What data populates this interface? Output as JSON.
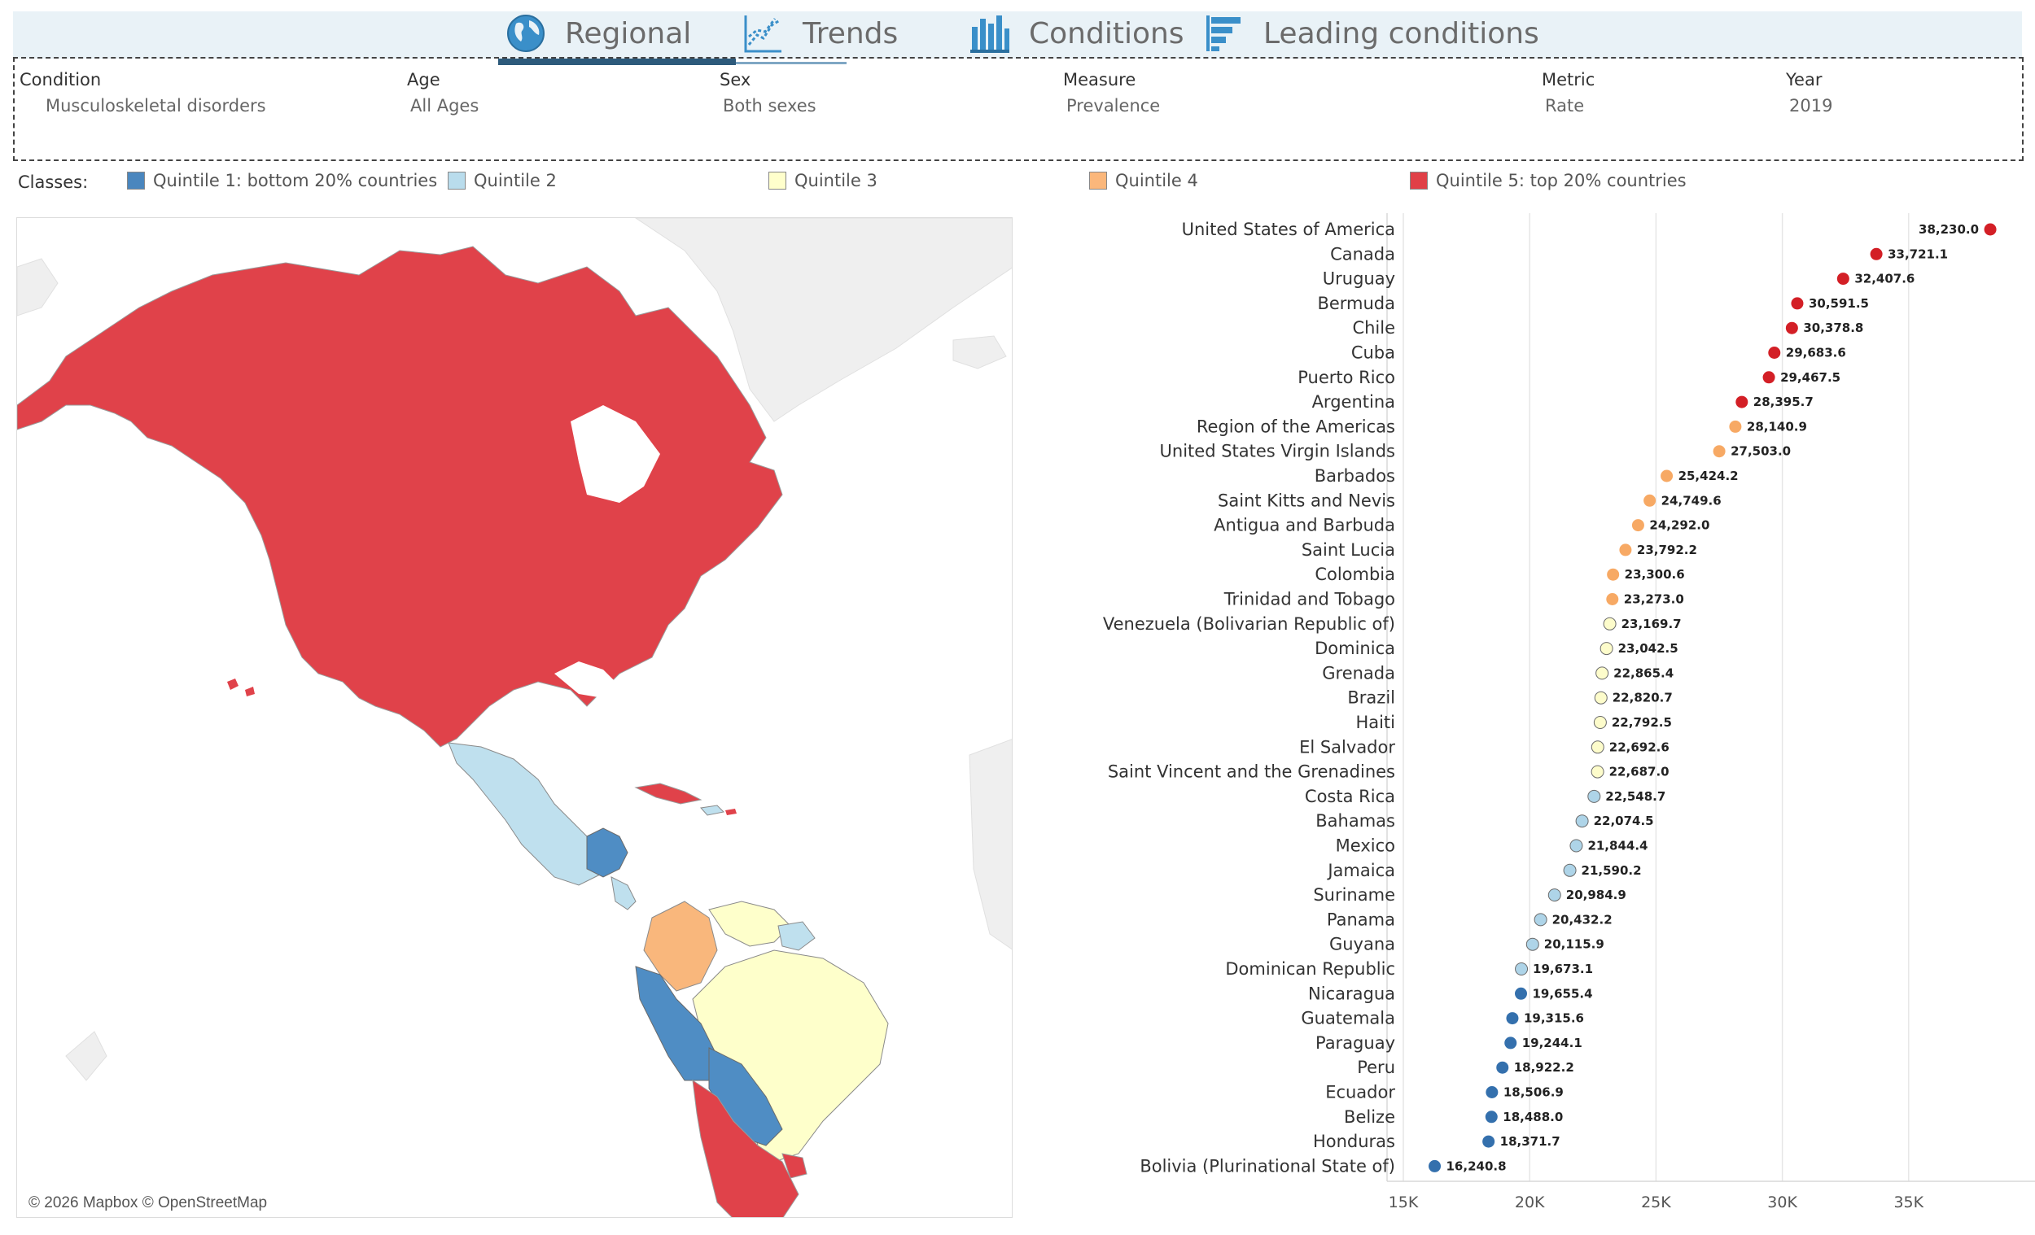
{
  "nav": {
    "tabs": [
      {
        "label": "Regional",
        "icon": "globe-icon"
      },
      {
        "label": "Trends",
        "icon": "line-chart-icon"
      },
      {
        "label": "Conditions",
        "icon": "bar-chart-icon"
      },
      {
        "label": "Leading conditions",
        "icon": "ranked-bars-icon"
      }
    ],
    "active": "Regional"
  },
  "filters": {
    "condition": {
      "label": "Condition",
      "value": "Musculoskeletal disorders"
    },
    "age": {
      "label": "Age",
      "value": "All Ages"
    },
    "sex": {
      "label": "Sex",
      "value": "Both sexes"
    },
    "measure": {
      "label": "Measure",
      "value": "Prevalence"
    },
    "metric": {
      "label": "Metric",
      "value": "Rate"
    },
    "year": {
      "label": "Year",
      "value": "2019"
    }
  },
  "legend": {
    "title": "Classes:",
    "items": [
      {
        "label": "Quintile 1: bottom 20% countries",
        "color": "#4a86be"
      },
      {
        "label": "Quintile 2",
        "color": "#b9dcec"
      },
      {
        "label": "Quintile 3",
        "color": "#ffffcc"
      },
      {
        "label": "Quintile 4",
        "color": "#fbb77b"
      },
      {
        "label": "Quintile 5: top 20% countries",
        "color": "#e04047"
      }
    ]
  },
  "colors": {
    "q1": "#3470ad",
    "q2": "#aed4e8",
    "q3": "#fdfccb",
    "q4": "#f7a964",
    "q5": "#d31f26",
    "map_q1": "#4f8dc4",
    "map_q2": "#bfe0ee",
    "map_q3": "#feffcb",
    "map_q4": "#f9b77c",
    "map_q5": "#e0424a",
    "land": "#f1f1f1"
  },
  "map": {
    "attribution": "© 2026 Mapbox © OpenStreetMap"
  },
  "chart_data": {
    "type": "scatter",
    "title": "",
    "xlabel": "",
    "ylabel": "",
    "xlim": [
      15000,
      40000
    ],
    "xticks": [
      15000,
      20000,
      25000,
      30000,
      35000
    ],
    "xtick_labels": [
      "15K",
      "20K",
      "25K",
      "30K",
      "35K"
    ],
    "grid": true,
    "points": [
      {
        "country": "United States of America",
        "value": 38230.0,
        "label": "38,230.0",
        "quintile": 5
      },
      {
        "country": "Canada",
        "value": 33721.1,
        "label": "33,721.1",
        "quintile": 5
      },
      {
        "country": "Uruguay",
        "value": 32407.6,
        "label": "32,407.6",
        "quintile": 5
      },
      {
        "country": "Bermuda",
        "value": 30591.5,
        "label": "30,591.5",
        "quintile": 5
      },
      {
        "country": "Chile",
        "value": 30378.8,
        "label": "30,378.8",
        "quintile": 5
      },
      {
        "country": "Cuba",
        "value": 29683.6,
        "label": "29,683.6",
        "quintile": 5
      },
      {
        "country": "Puerto Rico",
        "value": 29467.5,
        "label": "29,467.5",
        "quintile": 5
      },
      {
        "country": "Argentina",
        "value": 28395.7,
        "label": "28,395.7",
        "quintile": 5
      },
      {
        "country": "Region of the Americas",
        "value": 28140.9,
        "label": "28,140.9",
        "quintile": 4
      },
      {
        "country": "United States Virgin Islands",
        "value": 27503.0,
        "label": "27,503.0",
        "quintile": 4
      },
      {
        "country": "Barbados",
        "value": 25424.2,
        "label": "25,424.2",
        "quintile": 4
      },
      {
        "country": "Saint Kitts and Nevis",
        "value": 24749.6,
        "label": "24,749.6",
        "quintile": 4
      },
      {
        "country": "Antigua and Barbuda",
        "value": 24292.0,
        "label": "24,292.0",
        "quintile": 4
      },
      {
        "country": "Saint Lucia",
        "value": 23792.2,
        "label": "23,792.2",
        "quintile": 4
      },
      {
        "country": "Colombia",
        "value": 23300.6,
        "label": "23,300.6",
        "quintile": 4
      },
      {
        "country": "Trinidad and Tobago",
        "value": 23273.0,
        "label": "23,273.0",
        "quintile": 4
      },
      {
        "country": "Venezuela (Bolivarian Republic of)",
        "value": 23169.7,
        "label": "23,169.7",
        "quintile": 3
      },
      {
        "country": "Dominica",
        "value": 23042.5,
        "label": "23,042.5",
        "quintile": 3
      },
      {
        "country": "Grenada",
        "value": 22865.4,
        "label": "22,865.4",
        "quintile": 3
      },
      {
        "country": "Brazil",
        "value": 22820.7,
        "label": "22,820.7",
        "quintile": 3
      },
      {
        "country": "Haiti",
        "value": 22792.5,
        "label": "22,792.5",
        "quintile": 3
      },
      {
        "country": "El Salvador",
        "value": 22692.6,
        "label": "22,692.6",
        "quintile": 3
      },
      {
        "country": "Saint Vincent and the Grenadines",
        "value": 22687.0,
        "label": "22,687.0",
        "quintile": 3
      },
      {
        "country": "Costa Rica",
        "value": 22548.7,
        "label": "22,548.7",
        "quintile": 2
      },
      {
        "country": "Bahamas",
        "value": 22074.5,
        "label": "22,074.5",
        "quintile": 2
      },
      {
        "country": "Mexico",
        "value": 21844.4,
        "label": "21,844.4",
        "quintile": 2
      },
      {
        "country": "Jamaica",
        "value": 21590.2,
        "label": "21,590.2",
        "quintile": 2
      },
      {
        "country": "Suriname",
        "value": 20984.9,
        "label": "20,984.9",
        "quintile": 2
      },
      {
        "country": "Panama",
        "value": 20432.2,
        "label": "20,432.2",
        "quintile": 2
      },
      {
        "country": "Guyana",
        "value": 20115.9,
        "label": "20,115.9",
        "quintile": 2
      },
      {
        "country": "Dominican Republic",
        "value": 19673.1,
        "label": "19,673.1",
        "quintile": 2
      },
      {
        "country": "Nicaragua",
        "value": 19655.4,
        "label": "19,655.4",
        "quintile": 1
      },
      {
        "country": "Guatemala",
        "value": 19315.6,
        "label": "19,315.6",
        "quintile": 1
      },
      {
        "country": "Paraguay",
        "value": 19244.1,
        "label": "19,244.1",
        "quintile": 1
      },
      {
        "country": "Peru",
        "value": 18922.2,
        "label": "18,922.2",
        "quintile": 1
      },
      {
        "country": "Ecuador",
        "value": 18506.9,
        "label": "18,506.9",
        "quintile": 1
      },
      {
        "country": "Belize",
        "value": 18488.0,
        "label": "18,488.0",
        "quintile": 1
      },
      {
        "country": "Honduras",
        "value": 18371.7,
        "label": "18,371.7",
        "quintile": 1
      },
      {
        "country": "Bolivia (Plurinational State of)",
        "value": 16240.8,
        "label": "16,240.8",
        "quintile": 1
      }
    ]
  }
}
